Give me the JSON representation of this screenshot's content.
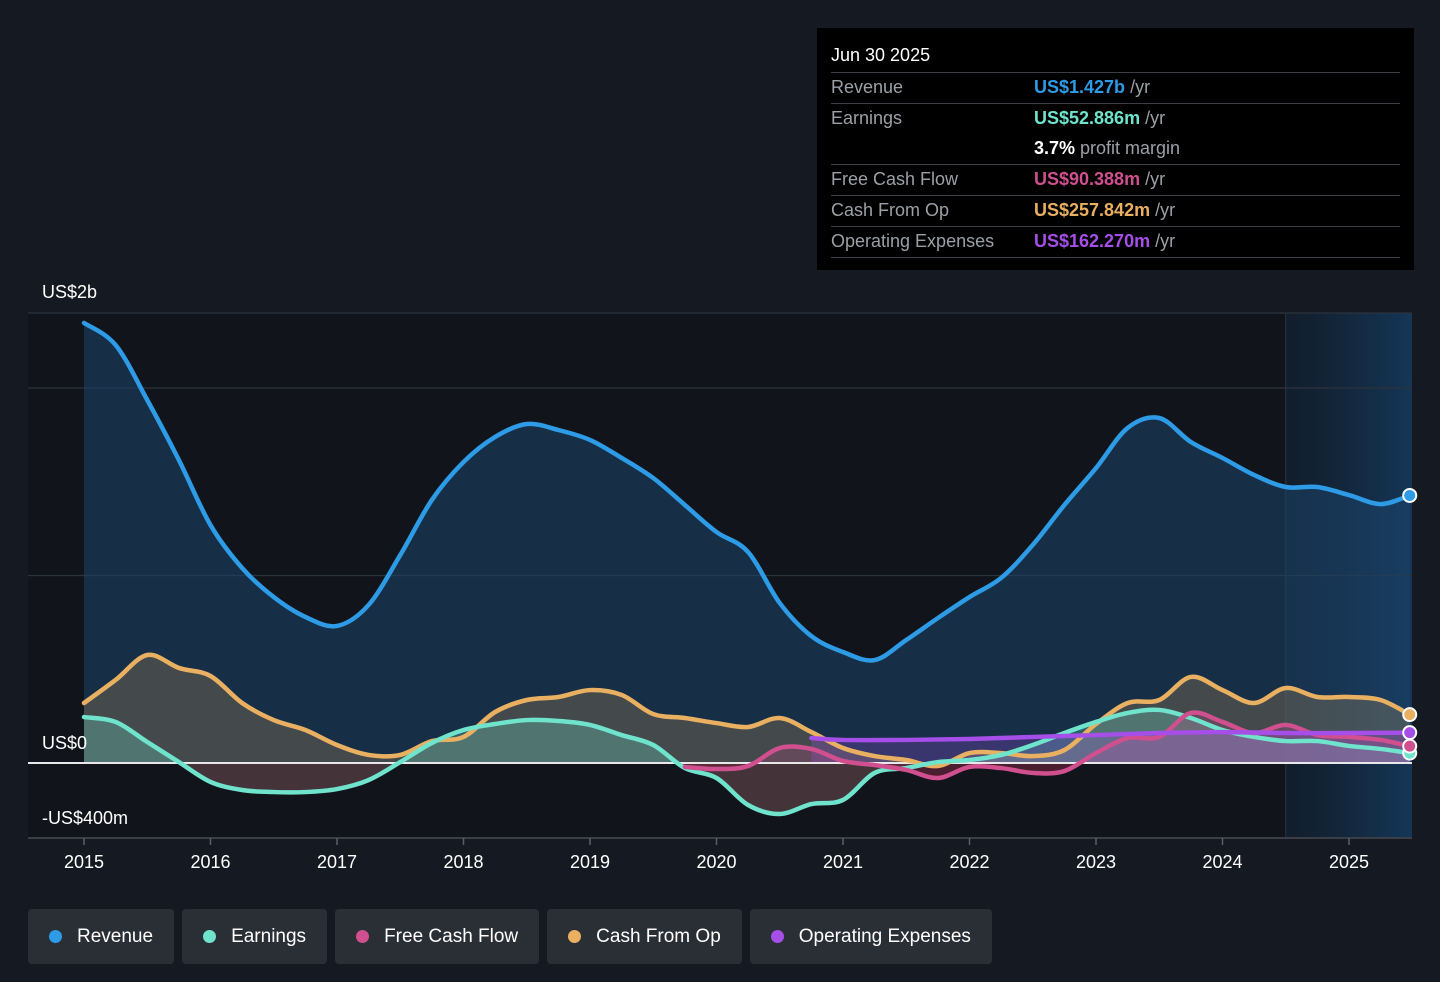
{
  "tooltip": {
    "date": "Jun 30 2025",
    "rows": [
      {
        "label": "Revenue",
        "value": "US$1.427b",
        "unit": "/yr",
        "color": "#2d9be5"
      },
      {
        "label": "Earnings",
        "value": "US$52.886m",
        "unit": "/yr",
        "color": "#6fe3cc"
      },
      {
        "label": "",
        "value": "3.7%",
        "unit": "profit margin",
        "color": "#ffffff"
      },
      {
        "label": "Free Cash Flow",
        "value": "US$90.388m",
        "unit": "/yr",
        "color": "#d04f8f"
      },
      {
        "label": "Cash From Op",
        "value": "US$257.842m",
        "unit": "/yr",
        "color": "#e9b062"
      },
      {
        "label": "Operating Expenses",
        "value": "US$162.270m",
        "unit": "/yr",
        "color": "#a54ee8"
      }
    ]
  },
  "legend": [
    {
      "label": "Revenue",
      "color": "#2d9be5"
    },
    {
      "label": "Earnings",
      "color": "#6fe3cc"
    },
    {
      "label": "Free Cash Flow",
      "color": "#d04f8f"
    },
    {
      "label": "Cash From Op",
      "color": "#e9b062"
    },
    {
      "label": "Operating Expenses",
      "color": "#a54ee8"
    }
  ],
  "chart_data": {
    "type": "line",
    "title": "",
    "xlabel": "",
    "ylabel": "",
    "units": "US$ millions",
    "xlim": [
      2014.56,
      2025.48
    ],
    "ylim": [
      -400,
      2400
    ],
    "y_label_texts": [
      {
        "value": 2000,
        "text": "US$2b"
      },
      {
        "value": 0,
        "text": "US$0"
      },
      {
        "value": -400,
        "text": "-US$400m"
      }
    ],
    "grid_values": [
      1000,
      2000,
      2400
    ],
    "grid": true,
    "x_ticks": [
      2015,
      2016,
      2017,
      2018,
      2019,
      2020,
      2021,
      2022,
      2023,
      2024,
      2025
    ],
    "x_tick_labels": [
      "2015",
      "2016",
      "2017",
      "2018",
      "2019",
      "2020",
      "2021",
      "2022",
      "2023",
      "2024",
      "2025"
    ],
    "highlight_from": 2024.5,
    "legend_position": "bottom",
    "series": [
      {
        "name": "Revenue",
        "color": "#2d9be5",
        "x": [
          2015.0,
          2015.25,
          2015.5,
          2015.75,
          2016.0,
          2016.25,
          2016.5,
          2016.75,
          2017.0,
          2017.25,
          2017.5,
          2017.75,
          2018.0,
          2018.25,
          2018.5,
          2018.75,
          2019.0,
          2019.25,
          2019.5,
          2019.75,
          2020.0,
          2020.25,
          2020.5,
          2020.75,
          2021.0,
          2021.25,
          2021.5,
          2021.75,
          2022.0,
          2022.25,
          2022.5,
          2022.75,
          2023.0,
          2023.25,
          2023.5,
          2023.75,
          2024.0,
          2024.25,
          2024.5,
          2024.75,
          2025.0,
          2025.25,
          2025.48
        ],
        "values": [
          2347,
          2229,
          1936,
          1616,
          1269,
          1040,
          885,
          779,
          731,
          843,
          1109,
          1403,
          1605,
          1739,
          1808,
          1776,
          1723,
          1627,
          1520,
          1376,
          1232,
          1125,
          853,
          677,
          592,
          549,
          656,
          773,
          885,
          987,
          1163,
          1376,
          1573,
          1787,
          1840,
          1712,
          1627,
          1536,
          1472,
          1472,
          1429,
          1381,
          1427
        ]
      },
      {
        "name": "Earnings",
        "color": "#6fe3cc",
        "x": [
          2015.0,
          2015.25,
          2015.5,
          2015.75,
          2016.0,
          2016.25,
          2016.5,
          2016.75,
          2017.0,
          2017.25,
          2017.5,
          2017.75,
          2018.0,
          2018.25,
          2018.5,
          2018.75,
          2019.0,
          2019.25,
          2019.5,
          2019.75,
          2020.0,
          2020.25,
          2020.5,
          2020.75,
          2021.0,
          2021.25,
          2021.5,
          2021.75,
          2022.0,
          2022.25,
          2022.5,
          2022.75,
          2023.0,
          2023.25,
          2023.5,
          2023.75,
          2024.0,
          2024.25,
          2024.5,
          2024.75,
          2025.0,
          2025.25,
          2025.48
        ],
        "values": [
          245,
          219,
          112,
          5,
          -101,
          -144,
          -155,
          -155,
          -139,
          -91,
          5,
          107,
          176,
          208,
          229,
          224,
          203,
          149,
          96,
          -27,
          -80,
          -224,
          -272,
          -219,
          -197,
          -53,
          -27,
          5,
          16,
          43,
          96,
          160,
          219,
          267,
          283,
          240,
          176,
          139,
          117,
          117,
          91,
          75,
          53
        ]
      },
      {
        "name": "Free Cash Flow",
        "color": "#d04f8f",
        "x": [
          2019.75,
          2020.0,
          2020.25,
          2020.5,
          2020.75,
          2021.0,
          2021.25,
          2021.5,
          2021.75,
          2022.0,
          2022.25,
          2022.5,
          2022.75,
          2023.0,
          2023.25,
          2023.5,
          2023.75,
          2024.0,
          2024.25,
          2024.5,
          2024.75,
          2025.0,
          2025.25,
          2025.48
        ],
        "values": [
          -21,
          -32,
          -16,
          80,
          75,
          11,
          -11,
          -37,
          -80,
          -21,
          -27,
          -53,
          -43,
          53,
          133,
          139,
          267,
          219,
          160,
          203,
          149,
          139,
          123,
          90
        ]
      },
      {
        "name": "Cash From Op",
        "color": "#e9b062",
        "x": [
          2015.0,
          2015.25,
          2015.5,
          2015.75,
          2016.0,
          2016.25,
          2016.5,
          2016.75,
          2017.0,
          2017.25,
          2017.5,
          2017.75,
          2018.0,
          2018.25,
          2018.5,
          2018.75,
          2019.0,
          2019.25,
          2019.5,
          2019.75,
          2020.0,
          2020.25,
          2020.5,
          2020.75,
          2021.0,
          2021.25,
          2021.5,
          2021.75,
          2022.0,
          2022.25,
          2022.5,
          2022.75,
          2023.0,
          2023.25,
          2023.5,
          2023.75,
          2024.0,
          2024.25,
          2024.5,
          2024.75,
          2025.0,
          2025.25,
          2025.48
        ],
        "values": [
          320,
          443,
          576,
          507,
          464,
          320,
          229,
          176,
          96,
          43,
          43,
          117,
          139,
          272,
          336,
          352,
          389,
          363,
          261,
          240,
          213,
          192,
          240,
          165,
          80,
          37,
          16,
          -16,
          53,
          53,
          37,
          69,
          208,
          320,
          336,
          459,
          389,
          320,
          400,
          352,
          352,
          336,
          258
        ]
      },
      {
        "name": "Operating Expenses",
        "color": "#a54ee8",
        "x": [
          2020.75,
          2021.0,
          2021.5,
          2022.0,
          2022.5,
          2023.0,
          2023.5,
          2024.0,
          2024.5,
          2025.0,
          2025.48
        ],
        "values": [
          133,
          123,
          123,
          128,
          139,
          149,
          160,
          165,
          160,
          160,
          162
        ]
      }
    ]
  }
}
